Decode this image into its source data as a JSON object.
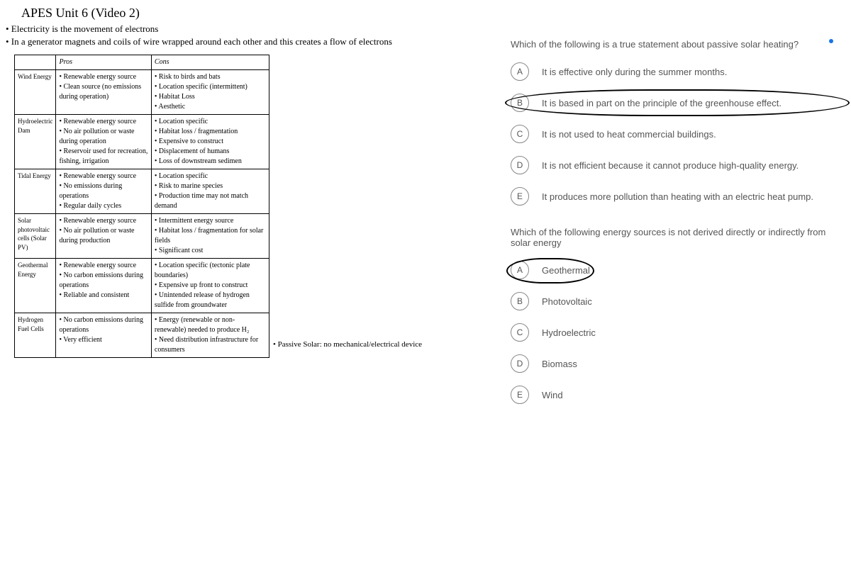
{
  "title": "APES Unit 6 (Video 2)",
  "bullets": [
    "• Electricity is the movement of electrons",
    "• In a generator magnets and coils of wire wrapped around each other and this creates a flow of electrons"
  ],
  "table": {
    "headers": [
      "",
      "Pros",
      "Cons"
    ],
    "rows": [
      {
        "label": "Wind Energy",
        "pros": "• Renewable energy source\n• Clean source (no emissions during operation)",
        "cons": "• Risk to birds and bats\n• Location specific (intermittent)\n• Habitat Loss\n• Aesthetic"
      },
      {
        "label": "Hydroelectric Dam",
        "pros": "• Renewable energy source\n• No air pollution or waste during operation\n• Reservoir used for recreation, fishing, irrigation",
        "cons": "• Location specific\n• Habitat loss / fragmentation\n• Expensive to construct\n• Displacement of humans\n• Loss of downstream sedimen"
      },
      {
        "label": "Tidal Energy",
        "pros": "• Renewable energy source\n• No emissions during operations\n• Regular daily cycles",
        "cons": "• Location specific\n• Risk to marine species\n• Production time may not match demand"
      },
      {
        "label": "Solar photovoltaic cells (Solar PV)",
        "pros": "• Renewable energy source\n• No air pollution or waste during production",
        "cons": "• Intermittent energy source\n• Habitat loss / fragmentation for solar fields\n• Significant cost"
      },
      {
        "label": "Geothermal Energy",
        "pros": "• Renewable energy source\n• No carbon emissions during operations\n• Reliable and consistent",
        "cons": "• Location specific (tectonic plate boundaries)\n• Expensive up front to construct\n• Unintended release of hydrogen sulfide from groundwater"
      },
      {
        "label": "Hydrogen Fuel Cells",
        "pros": "• No carbon emissions during operations\n• Very efficient",
        "cons": "• Energy (renewable or non-renewable) needed to produce H₂\n• Need distribution infrastructure for consumers"
      }
    ]
  },
  "side_note": "• Passive Solar: no mechanical/electrical device",
  "questions": [
    {
      "text": "Which of the following is a true statement about passive solar heating?",
      "options": [
        {
          "letter": "A",
          "text": "It is effective only during the summer months.",
          "circled": false
        },
        {
          "letter": "B",
          "text": "It is based in part on the principle of the greenhouse effect.",
          "circled": true,
          "circle_style": "wide"
        },
        {
          "letter": "C",
          "text": "It is not used to heat commercial buildings.",
          "circled": false
        },
        {
          "letter": "D",
          "text": "It is not efficient because it cannot produce high-quality energy.",
          "circled": false
        },
        {
          "letter": "E",
          "text": "It produces more pollution than heating with an electric heat pump.",
          "circled": false
        }
      ]
    },
    {
      "text": "Which of the following energy sources is not derived directly or indirectly from solar energy",
      "options": [
        {
          "letter": "A",
          "text": "Geothermal",
          "circled": true,
          "circle_style": "narrow"
        },
        {
          "letter": "B",
          "text": "Photovoltaic",
          "circled": false
        },
        {
          "letter": "C",
          "text": "Hydroelectric",
          "circled": false
        },
        {
          "letter": "D",
          "text": "Biomass",
          "circled": false
        },
        {
          "letter": "E",
          "text": "Wind",
          "circled": false
        }
      ]
    }
  ]
}
